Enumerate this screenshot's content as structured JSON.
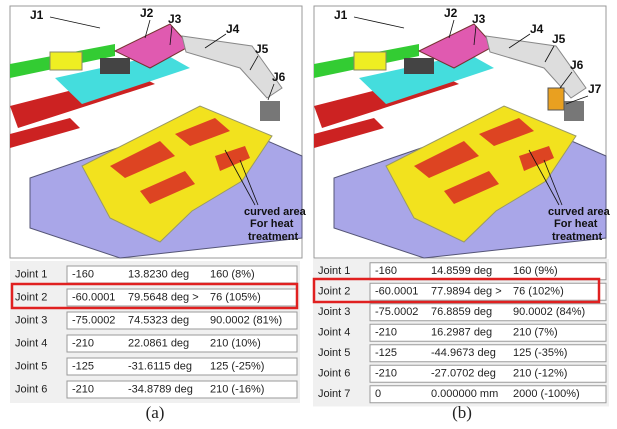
{
  "panel_a": {
    "labels": [
      "J1",
      "J2",
      "J3",
      "J4",
      "J5",
      "J6"
    ],
    "annotation": [
      "curved area",
      "For heat",
      "treatment"
    ],
    "table": {
      "rows": [
        [
          "Joint 1",
          "-160",
          "13.8230 deg",
          "160 (8%)"
        ],
        [
          "Joint 2",
          "-60.0001",
          "79.5648 deg >",
          "76 (105%)"
        ],
        [
          "Joint 3",
          "-75.0002",
          "74.5323 deg",
          "90.0002 (81%)"
        ],
        [
          "Joint 4",
          "-210",
          "22.0861 deg",
          "210 (10%)"
        ],
        [
          "Joint 5",
          "-125",
          "-31.6115 deg",
          "125 (-25%)"
        ],
        [
          "Joint 6",
          "-210",
          "-34.8789 deg",
          "210 (-16%)"
        ]
      ]
    },
    "caption": "(a)"
  },
  "panel_b": {
    "labels": [
      "J1",
      "J2",
      "J3",
      "J4",
      "J5",
      "J6",
      "J7"
    ],
    "annotation": [
      "curved area",
      "For heat",
      "treatment"
    ],
    "table": {
      "rows": [
        [
          "Joint 1",
          "-160",
          "14.8599 deg",
          "160 (9%)"
        ],
        [
          "Joint 2",
          "-60.0001",
          "77.9894 deg >",
          "76 (102%)"
        ],
        [
          "Joint 3",
          "-75.0002",
          "76.8859 deg",
          "90.0002 (84%)"
        ],
        [
          "Joint 4",
          "-210",
          "16.2987 deg",
          "210 (7%)"
        ],
        [
          "Joint 5",
          "-125",
          "-44.9673 deg",
          "125 (-35%)"
        ],
        [
          "Joint 6",
          "-210",
          "-27.0702 deg",
          "210 (-12%)"
        ],
        [
          "Joint 7",
          "0",
          "0.000000 mm",
          "2000 (-100%)"
        ]
      ]
    },
    "caption": "(b)"
  }
}
